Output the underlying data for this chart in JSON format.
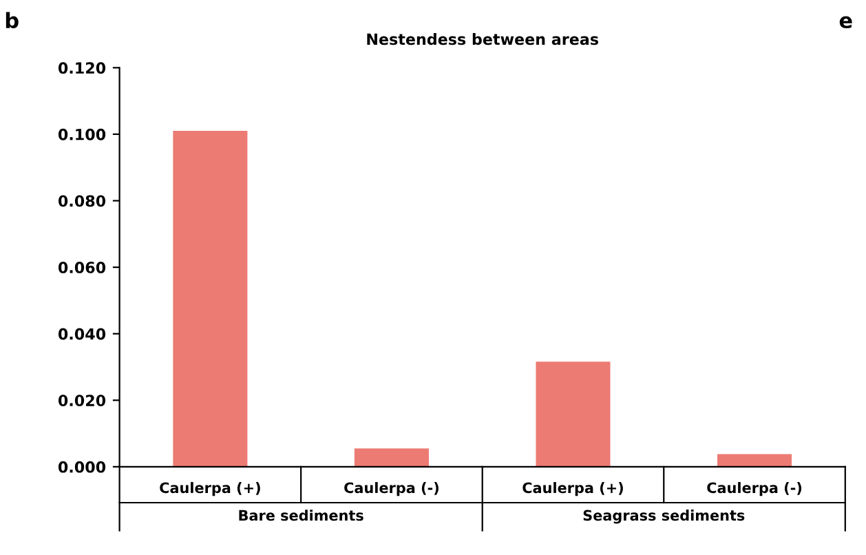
{
  "chart_data": {
    "type": "bar",
    "title": "Nestendess between areas",
    "categories": [
      "Caulerpa (+)",
      "Caulerpa (-)",
      "Caulerpa (+)",
      "Caulerpa (-)"
    ],
    "values": [
      0.101,
      0.0055,
      0.0316,
      0.0038
    ],
    "color": "#ec7b73",
    "ylim": [
      0,
      0.12
    ],
    "yticks": [
      {
        "value": 0,
        "label": "0.000"
      },
      {
        "value": 0.02,
        "label": "0.020"
      },
      {
        "value": 0.04,
        "label": "0.040"
      },
      {
        "value": 0.06,
        "label": "0.060"
      },
      {
        "value": 0.08,
        "label": "0.080"
      },
      {
        "value": 0.1,
        "label": "0.100"
      },
      {
        "value": 0.12,
        "label": "0.120"
      }
    ],
    "grid": false,
    "annotations": [
      "b",
      "e",
      "Bare sediments",
      "Seagrass sediments"
    ]
  }
}
